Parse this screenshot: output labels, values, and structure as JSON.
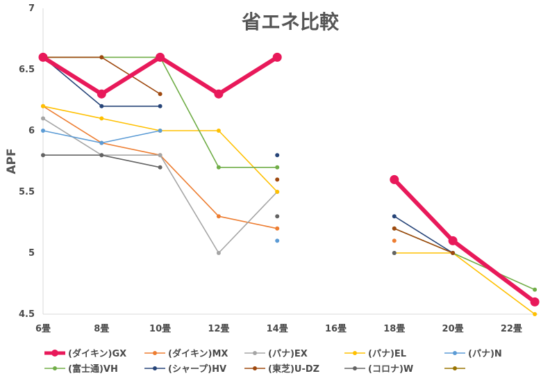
{
  "chart_data": {
    "type": "line",
    "title": "省エネ比較",
    "xlabel": "",
    "ylabel": "APF",
    "categories": [
      "6畳",
      "8畳",
      "10畳",
      "12畳",
      "14畳",
      "16畳",
      "18畳",
      "20畳",
      "22畳"
    ],
    "ylim": [
      4.5,
      7
    ],
    "yticks": [
      "4.5",
      "5",
      "5.5",
      "6",
      "6.5",
      "7"
    ],
    "grid": false,
    "legend": "bottom",
    "series": [
      {
        "name": "(ダイキン)GX",
        "color": "#e8195a",
        "emphasis": true,
        "points": [
          [
            0,
            6.6
          ],
          [
            1,
            6.3
          ],
          [
            2,
            6.6
          ],
          [
            3,
            6.3
          ],
          [
            4,
            6.6
          ],
          [
            6,
            5.6
          ],
          [
            7,
            5.1
          ],
          [
            8.4,
            4.6
          ]
        ]
      },
      {
        "name": "(ダイキン)MX",
        "color": "#ed7d31",
        "points": [
          [
            0,
            6.2
          ],
          [
            1,
            5.9
          ],
          [
            2,
            5.8
          ],
          [
            3,
            5.3
          ],
          [
            4,
            5.2
          ],
          [
            6,
            5.1
          ]
        ]
      },
      {
        "name": "(パナ)EX",
        "color": "#a5a5a5",
        "points": [
          [
            0,
            6.1
          ],
          [
            1,
            5.8
          ],
          [
            2,
            5.8
          ],
          [
            3,
            5.0
          ],
          [
            4,
            5.5
          ]
        ]
      },
      {
        "name": "(パナ)EL",
        "color": "#ffc000",
        "points": [
          [
            0,
            6.2
          ],
          [
            1,
            6.1
          ],
          [
            2,
            6.0
          ],
          [
            3,
            6.0
          ],
          [
            4,
            5.5
          ],
          [
            6,
            5.0
          ],
          [
            7,
            5.0
          ],
          [
            8.4,
            4.5
          ]
        ]
      },
      {
        "name": "(パナ)N",
        "color": "#5b9bd5",
        "points": [
          [
            0,
            6.0
          ],
          [
            1,
            5.9
          ],
          [
            2,
            6.0
          ],
          [
            4,
            5.1
          ],
          [
            6,
            5.0
          ]
        ]
      },
      {
        "name": "(富士通)VH",
        "color": "#70ad47",
        "points": [
          [
            0,
            6.6
          ],
          [
            1,
            6.6
          ],
          [
            2,
            6.6
          ],
          [
            3,
            5.7
          ],
          [
            4,
            5.7
          ],
          [
            6,
            5.2
          ],
          [
            7,
            5.0
          ],
          [
            8.4,
            4.7
          ]
        ]
      },
      {
        "name": "(シャープ)HV",
        "color": "#264478",
        "points": [
          [
            0,
            6.6
          ],
          [
            1,
            6.2
          ],
          [
            2,
            6.2
          ],
          [
            4,
            5.8
          ],
          [
            6,
            5.3
          ],
          [
            7,
            5.0
          ]
        ]
      },
      {
        "name": "(東芝)U-DZ",
        "color": "#9e480e",
        "points": [
          [
            0,
            6.6
          ],
          [
            1,
            6.6
          ],
          [
            2,
            6.3
          ],
          [
            4,
            5.6
          ],
          [
            6,
            5.2
          ],
          [
            7,
            5.0
          ]
        ]
      },
      {
        "name": "(コロナ)W",
        "color": "#636363",
        "points": [
          [
            0,
            5.8
          ],
          [
            1,
            5.8
          ],
          [
            2,
            5.7
          ],
          [
            4,
            5.3
          ],
          [
            6,
            5.0
          ]
        ]
      },
      {
        "name": "",
        "color": "#997300",
        "points": []
      }
    ]
  }
}
